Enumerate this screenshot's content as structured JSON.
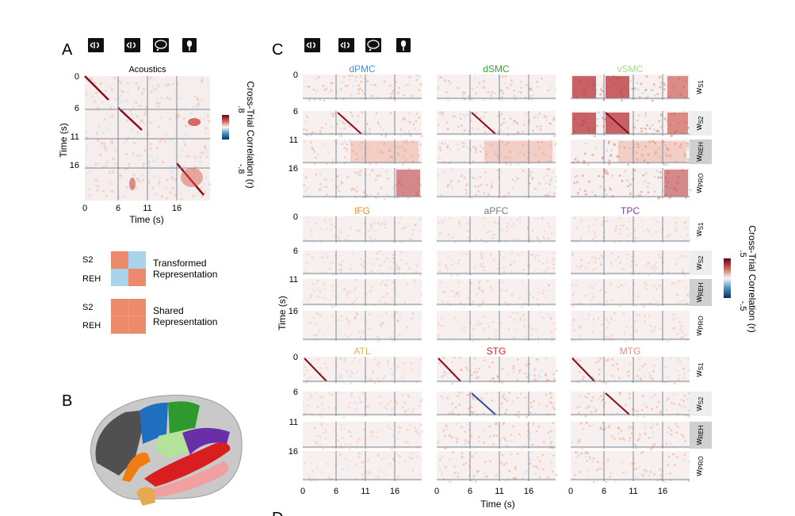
{
  "panel_letters": {
    "a": "A",
    "b": "B",
    "c": "C",
    "d": "D"
  },
  "panel_a": {
    "title": "Acoustics",
    "ylabel": "Time (s)",
    "xlabel": "Time (s)",
    "ticks": [
      "0",
      "6",
      "11",
      "16"
    ],
    "colorbar": {
      "label": "Cross-Trial Correlation (r)",
      "max": ".8",
      "min": "-.8"
    }
  },
  "legend": {
    "transformed": {
      "row1": "S2",
      "row2": "REH",
      "label1": "Transformed",
      "label2": "Representation"
    },
    "shared": {
      "row1": "S2",
      "row2": "REH",
      "label1": "Shared",
      "label2": "Representation"
    }
  },
  "panel_c": {
    "ylabel": "Time (s)",
    "xlabel": "Time (s)",
    "ticks": [
      "0",
      "6",
      "11",
      "16"
    ],
    "colorbar": {
      "label": "Cross-Trial Correlation (r)",
      "max": ".5",
      "min": "-.5"
    },
    "side_labels": [
      {
        "base": "w",
        "sub": "S1"
      },
      {
        "base": "w",
        "sub": "S2"
      },
      {
        "base": "w",
        "sub": "REH"
      },
      {
        "base": "w",
        "sub": "PRO"
      }
    ],
    "regions": [
      {
        "name": "dPMC",
        "color": "#4a90d9"
      },
      {
        "name": "dSMC",
        "color": "#3a9e3a"
      },
      {
        "name": "vSMC",
        "color": "#a8d88a"
      },
      {
        "name": "IFG",
        "color": "#f08a24"
      },
      {
        "name": "aPFC",
        "color": "#777777"
      },
      {
        "name": "TPC",
        "color": "#7b3fb0"
      },
      {
        "name": "ATL",
        "color": "#e8b04a"
      },
      {
        "name": "STG",
        "color": "#d62020"
      },
      {
        "name": "MTG",
        "color": "#e88888"
      }
    ]
  },
  "brain_colors": {
    "dpmc": "#1f6fc0",
    "dsmc": "#2e9a2e",
    "vsmc": "#b5e29b",
    "ifg": "#f07c12",
    "apfc": "#505050",
    "tpc": "#6a2fa8",
    "atl": "#e8a850",
    "stg": "#d81e1e",
    "mtg": "#f0a0a0"
  },
  "colors": {
    "red": "#b2182b",
    "blue": "#2166ac",
    "salmon": "#ee8a6c",
    "lightblue": "#a9d3ea"
  }
}
